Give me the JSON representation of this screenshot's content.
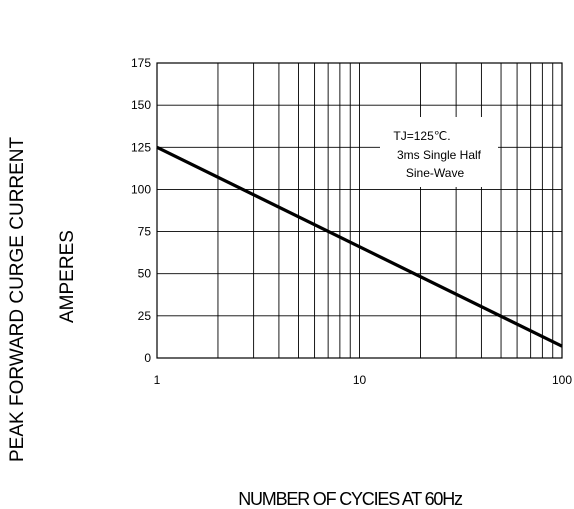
{
  "chart_data": {
    "type": "line",
    "xscale": "log",
    "xlim": [
      1,
      100
    ],
    "ylim": [
      0,
      175
    ],
    "xticks": [
      1,
      10,
      100
    ],
    "xtick_labels": [
      "1",
      "10",
      "100"
    ],
    "yticks": [
      0,
      25,
      50,
      75,
      100,
      125,
      150,
      175
    ],
    "ytick_labels": [
      "0",
      "25",
      "50",
      "75",
      "100",
      "125",
      "150",
      "175"
    ],
    "grid": true,
    "ylabel_line1": "PEAK FORWARD CURGE CURRENT",
    "ylabel_line2": "AMPERES",
    "xlabel": "NUMBER OF CYCIES AT 60Hz",
    "annotation": [
      "TJ=125℃.",
      "3ms Single Half",
      "Sine-Wave"
    ],
    "series": [
      {
        "x": [
          1,
          100
        ],
        "y": [
          125,
          7
        ]
      }
    ]
  }
}
